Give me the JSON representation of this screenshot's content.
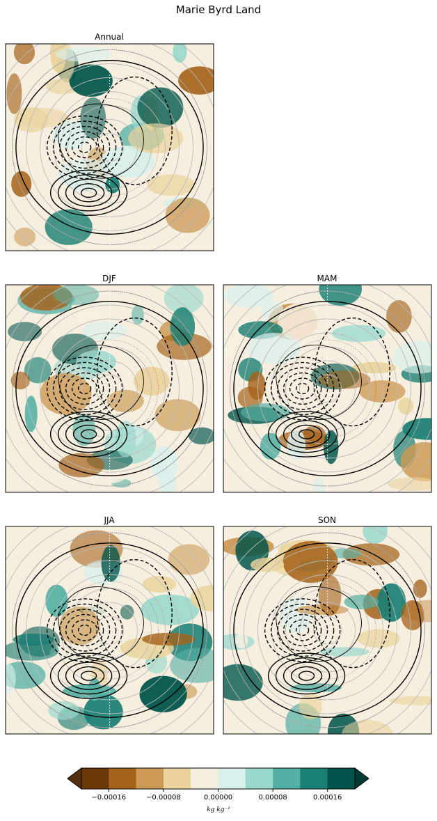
{
  "figure": {
    "title": "Marie Byrd Land"
  },
  "chart_data": [
    {
      "type": "heatmap",
      "title": "Annual",
      "panel": "annual",
      "field": "filled contours with contour lines, wind vectors and coastlines (polar stereographic)"
    },
    {
      "type": "heatmap",
      "title": "DJF",
      "panel": "djf"
    },
    {
      "type": "heatmap",
      "title": "MAM",
      "panel": "mam"
    },
    {
      "type": "heatmap",
      "title": "JJA",
      "panel": "jja"
    },
    {
      "type": "heatmap",
      "title": "SON",
      "panel": "son"
    }
  ],
  "colorbar": {
    "ticks": [
      "−0.00016",
      "−0.00008",
      "0.00000",
      "0.00008",
      "0.00016"
    ],
    "tick_values": [
      -0.00016,
      -8e-05,
      0.0,
      8e-05,
      0.00016
    ],
    "levels": [
      -0.0002,
      -0.00016,
      -0.00012,
      -8e-05,
      -4e-05,
      0.0,
      4e-05,
      8e-05,
      0.00012,
      0.00016,
      0.0002
    ],
    "unit_label": "kg kg⁻¹",
    "colors": [
      "#6b3a0a",
      "#a5631b",
      "#cd9a55",
      "#ead39c",
      "#f6efdf",
      "#daf0ec",
      "#9ad8cd",
      "#55b0a4",
      "#1a7f74",
      "#00544a"
    ],
    "extend_low_color": "#54300c",
    "extend_high_color": "#003b33"
  }
}
